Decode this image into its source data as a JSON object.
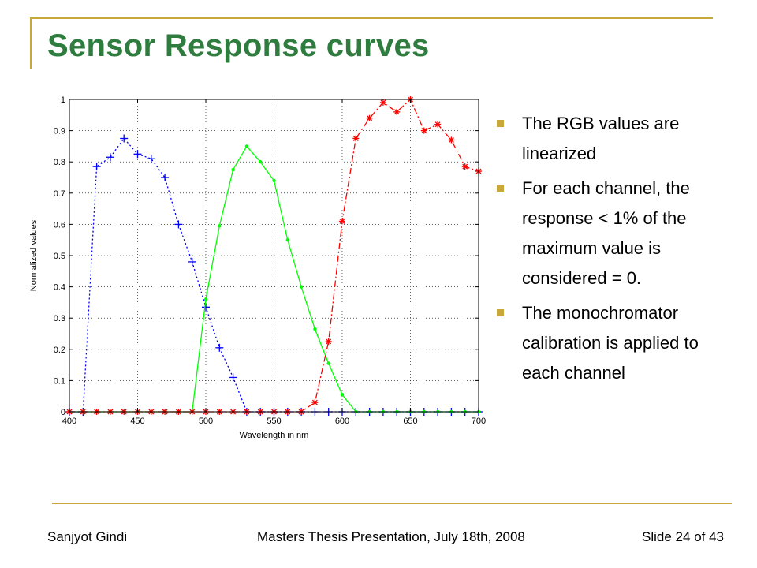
{
  "slide": {
    "title": "Sensor Response curves",
    "bullets": [
      "The RGB values are linearized",
      "For each channel, the response < 1% of the maximum value is considered = 0.",
      "The monochromator calibration is applied to each channel"
    ],
    "footer": {
      "author": "Sanjyot Gindi",
      "event": "Masters Thesis Presentation, July 18th, 2008",
      "slide_number": "Slide 24 of 43"
    },
    "colors": {
      "title": "#2e7d3e",
      "accent": "#c8a838"
    }
  },
  "chart_data": {
    "type": "line",
    "title": "",
    "xlabel": "Wavelength in nm",
    "ylabel": "Normalized values",
    "xlim": [
      400,
      700
    ],
    "ylim": [
      0,
      1
    ],
    "xticks": [
      400,
      450,
      500,
      550,
      600,
      650,
      700
    ],
    "yticks": [
      0,
      0.1,
      0.2,
      0.3,
      0.4,
      0.5,
      0.6,
      0.7,
      0.8,
      0.9,
      1
    ],
    "ytick_labels": [
      "0",
      "0.1",
      "0.2",
      "0.3",
      "0.4",
      "0.5",
      "0.6",
      "0.7",
      "0.8",
      "0.9",
      "1"
    ],
    "grid": true,
    "x": [
      400,
      410,
      420,
      430,
      440,
      450,
      460,
      470,
      480,
      490,
      500,
      510,
      520,
      530,
      540,
      550,
      560,
      570,
      580,
      590,
      600,
      610,
      620,
      630,
      640,
      650,
      660,
      670,
      680,
      690,
      700
    ],
    "series": [
      {
        "color": "#0000ff",
        "line": "dotted",
        "marker": "+",
        "values": [
          0,
          0,
          0.785,
          0.815,
          0.875,
          0.825,
          0.81,
          0.75,
          0.6,
          0.48,
          0.335,
          0.205,
          0.11,
          0,
          0,
          0,
          0,
          0,
          0,
          0,
          0,
          0,
          0,
          0,
          0,
          0,
          0,
          0,
          0,
          0,
          0
        ]
      },
      {
        "color": "#00ff00",
        "line": "solid",
        "marker": ".",
        "values": [
          0,
          0,
          0,
          0,
          0,
          0,
          0,
          0,
          0,
          0,
          0.36,
          0.595,
          0.775,
          0.85,
          0.8,
          0.74,
          0.55,
          0.4,
          0.265,
          0.155,
          0.055,
          0,
          0,
          0,
          0,
          0,
          0,
          0,
          0,
          0,
          0
        ]
      },
      {
        "color": "#ff0000",
        "line": "dashdot",
        "marker": "*",
        "values": [
          0,
          0,
          0,
          0,
          0,
          0,
          0,
          0,
          0,
          0,
          0,
          0,
          0,
          0,
          0,
          0,
          0,
          0,
          0.03,
          0.225,
          0.61,
          0.875,
          0.94,
          0.99,
          0.96,
          1.0,
          0.9,
          0.92,
          0.87,
          0.785,
          0.77
        ]
      }
    ]
  }
}
